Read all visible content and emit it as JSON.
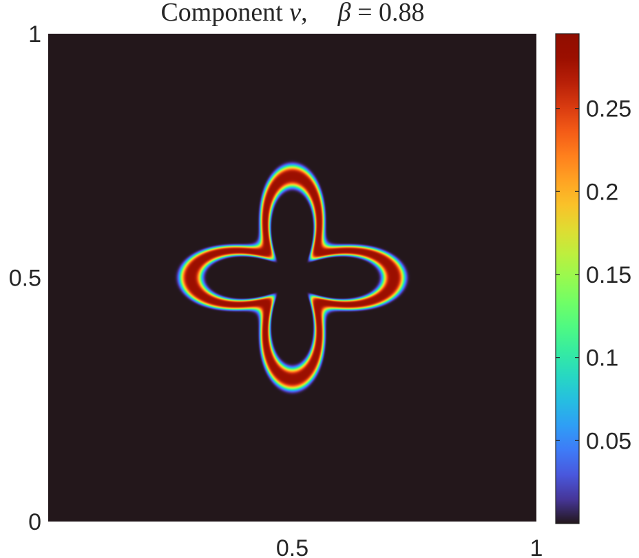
{
  "chart_data": {
    "type": "heatmap",
    "title": {
      "prefix": "Component ",
      "variable": "v",
      "sep": ",",
      "param_symbol": "β",
      "param_eq": " = ",
      "param_value": "0.88"
    },
    "xlabel": "",
    "ylabel": "",
    "xlim": [
      0,
      1
    ],
    "ylim": [
      0,
      1
    ],
    "x_ticks": [
      {
        "value": 0.5,
        "label": "0.5"
      },
      {
        "value": 1,
        "label": "1"
      }
    ],
    "y_ticks": [
      {
        "value": 0,
        "label": "0"
      },
      {
        "value": 0.5,
        "label": "0.5"
      },
      {
        "value": 1,
        "label": "1"
      }
    ],
    "colorbar": {
      "colormap": "turbo",
      "range": [
        0,
        0.295
      ],
      "ticks": [
        {
          "value": 0.05,
          "label": "0.05"
        },
        {
          "value": 0.1,
          "label": "0.1"
        },
        {
          "value": 0.15,
          "label": "0.15"
        },
        {
          "value": 0.2,
          "label": "0.2"
        },
        {
          "value": 0.25,
          "label": "0.25"
        }
      ]
    },
    "field": {
      "description_shape": "four-lobed ring pattern centered at (0.5, 0.5)",
      "center": [
        0.5,
        0.5
      ],
      "ring_radius_mean": 0.142,
      "ring_radius_modulation": 0.066,
      "angular_modes": 4,
      "band_halfwidth": 0.018,
      "peak_value": 0.28,
      "background_value": 0.0
    },
    "grid": false,
    "legend": "none",
    "colors": {
      "background_cell": "#2e1538",
      "text": "#262626",
      "axis": "#262626"
    }
  }
}
